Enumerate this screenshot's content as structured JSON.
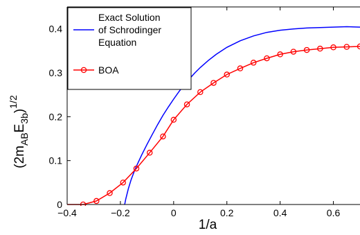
{
  "chart_data": {
    "type": "line",
    "xlabel": "1/a",
    "ylabel_base": "(2m",
    "ylabel_sub1": "AB",
    "ylabel_mid": "E",
    "ylabel_sub2": "3b",
    "ylabel_end": ")",
    "ylabel_sup": "1/2",
    "xlim": [
      -0.4,
      0.7
    ],
    "ylim": [
      0,
      0.45
    ],
    "x_ticks": [
      -0.4,
      -0.2,
      0,
      0.2,
      0.4,
      0.6
    ],
    "x_tick_labels": [
      "−0.4",
      "−0.2",
      "0",
      "0.2",
      "0.4",
      "0.6"
    ],
    "y_ticks": [
      0,
      0.1,
      0.2,
      0.3,
      0.4
    ],
    "y_tick_labels": [
      "0",
      "0.1",
      "0.2",
      "0.3",
      "0.4"
    ],
    "legend_position": "top-left",
    "series": [
      {
        "name": "Exact Solution of Schrodinger Equation",
        "legend_lines": [
          "Exact Solution",
          "of Schrodinger",
          "Equation"
        ],
        "color": "#0000ff",
        "marker": "none",
        "x": [
          -0.184,
          -0.18,
          -0.17,
          -0.16,
          -0.15,
          -0.14,
          -0.12,
          -0.1,
          -0.08,
          -0.06,
          -0.04,
          -0.02,
          0.0,
          0.02,
          0.05,
          0.08,
          0.1,
          0.13,
          0.16,
          0.2,
          0.25,
          0.3,
          0.35,
          0.4,
          0.45,
          0.5,
          0.55,
          0.6,
          0.65,
          0.7
        ],
        "y": [
          0.0,
          0.012,
          0.036,
          0.056,
          0.072,
          0.087,
          0.113,
          0.137,
          0.16,
          0.182,
          0.203,
          0.222,
          0.24,
          0.257,
          0.28,
          0.3,
          0.312,
          0.328,
          0.342,
          0.358,
          0.373,
          0.384,
          0.392,
          0.397,
          0.4,
          0.402,
          0.403,
          0.404,
          0.405,
          0.404
        ]
      },
      {
        "name": "BOA",
        "legend_lines": [
          "BOA"
        ],
        "color": "#ff0000",
        "marker": "circle",
        "x": [
          -0.4,
          -0.34,
          -0.29,
          -0.24,
          -0.19,
          -0.14,
          -0.09,
          -0.04,
          0.0,
          0.05,
          0.1,
          0.15,
          0.2,
          0.25,
          0.3,
          0.35,
          0.4,
          0.45,
          0.5,
          0.55,
          0.6,
          0.65,
          0.7
        ],
        "y": [
          0.0,
          0.0,
          0.008,
          0.026,
          0.05,
          0.082,
          0.118,
          0.155,
          0.193,
          0.228,
          0.256,
          0.277,
          0.296,
          0.31,
          0.323,
          0.333,
          0.342,
          0.348,
          0.352,
          0.355,
          0.358,
          0.359,
          0.36
        ],
        "marker_x": [
          -0.34,
          -0.29,
          -0.24,
          -0.19,
          -0.14,
          -0.09,
          -0.04,
          0.0,
          0.05,
          0.1,
          0.15,
          0.2,
          0.25,
          0.3,
          0.35,
          0.4,
          0.45,
          0.5,
          0.55,
          0.6,
          0.65,
          0.7
        ]
      }
    ]
  }
}
